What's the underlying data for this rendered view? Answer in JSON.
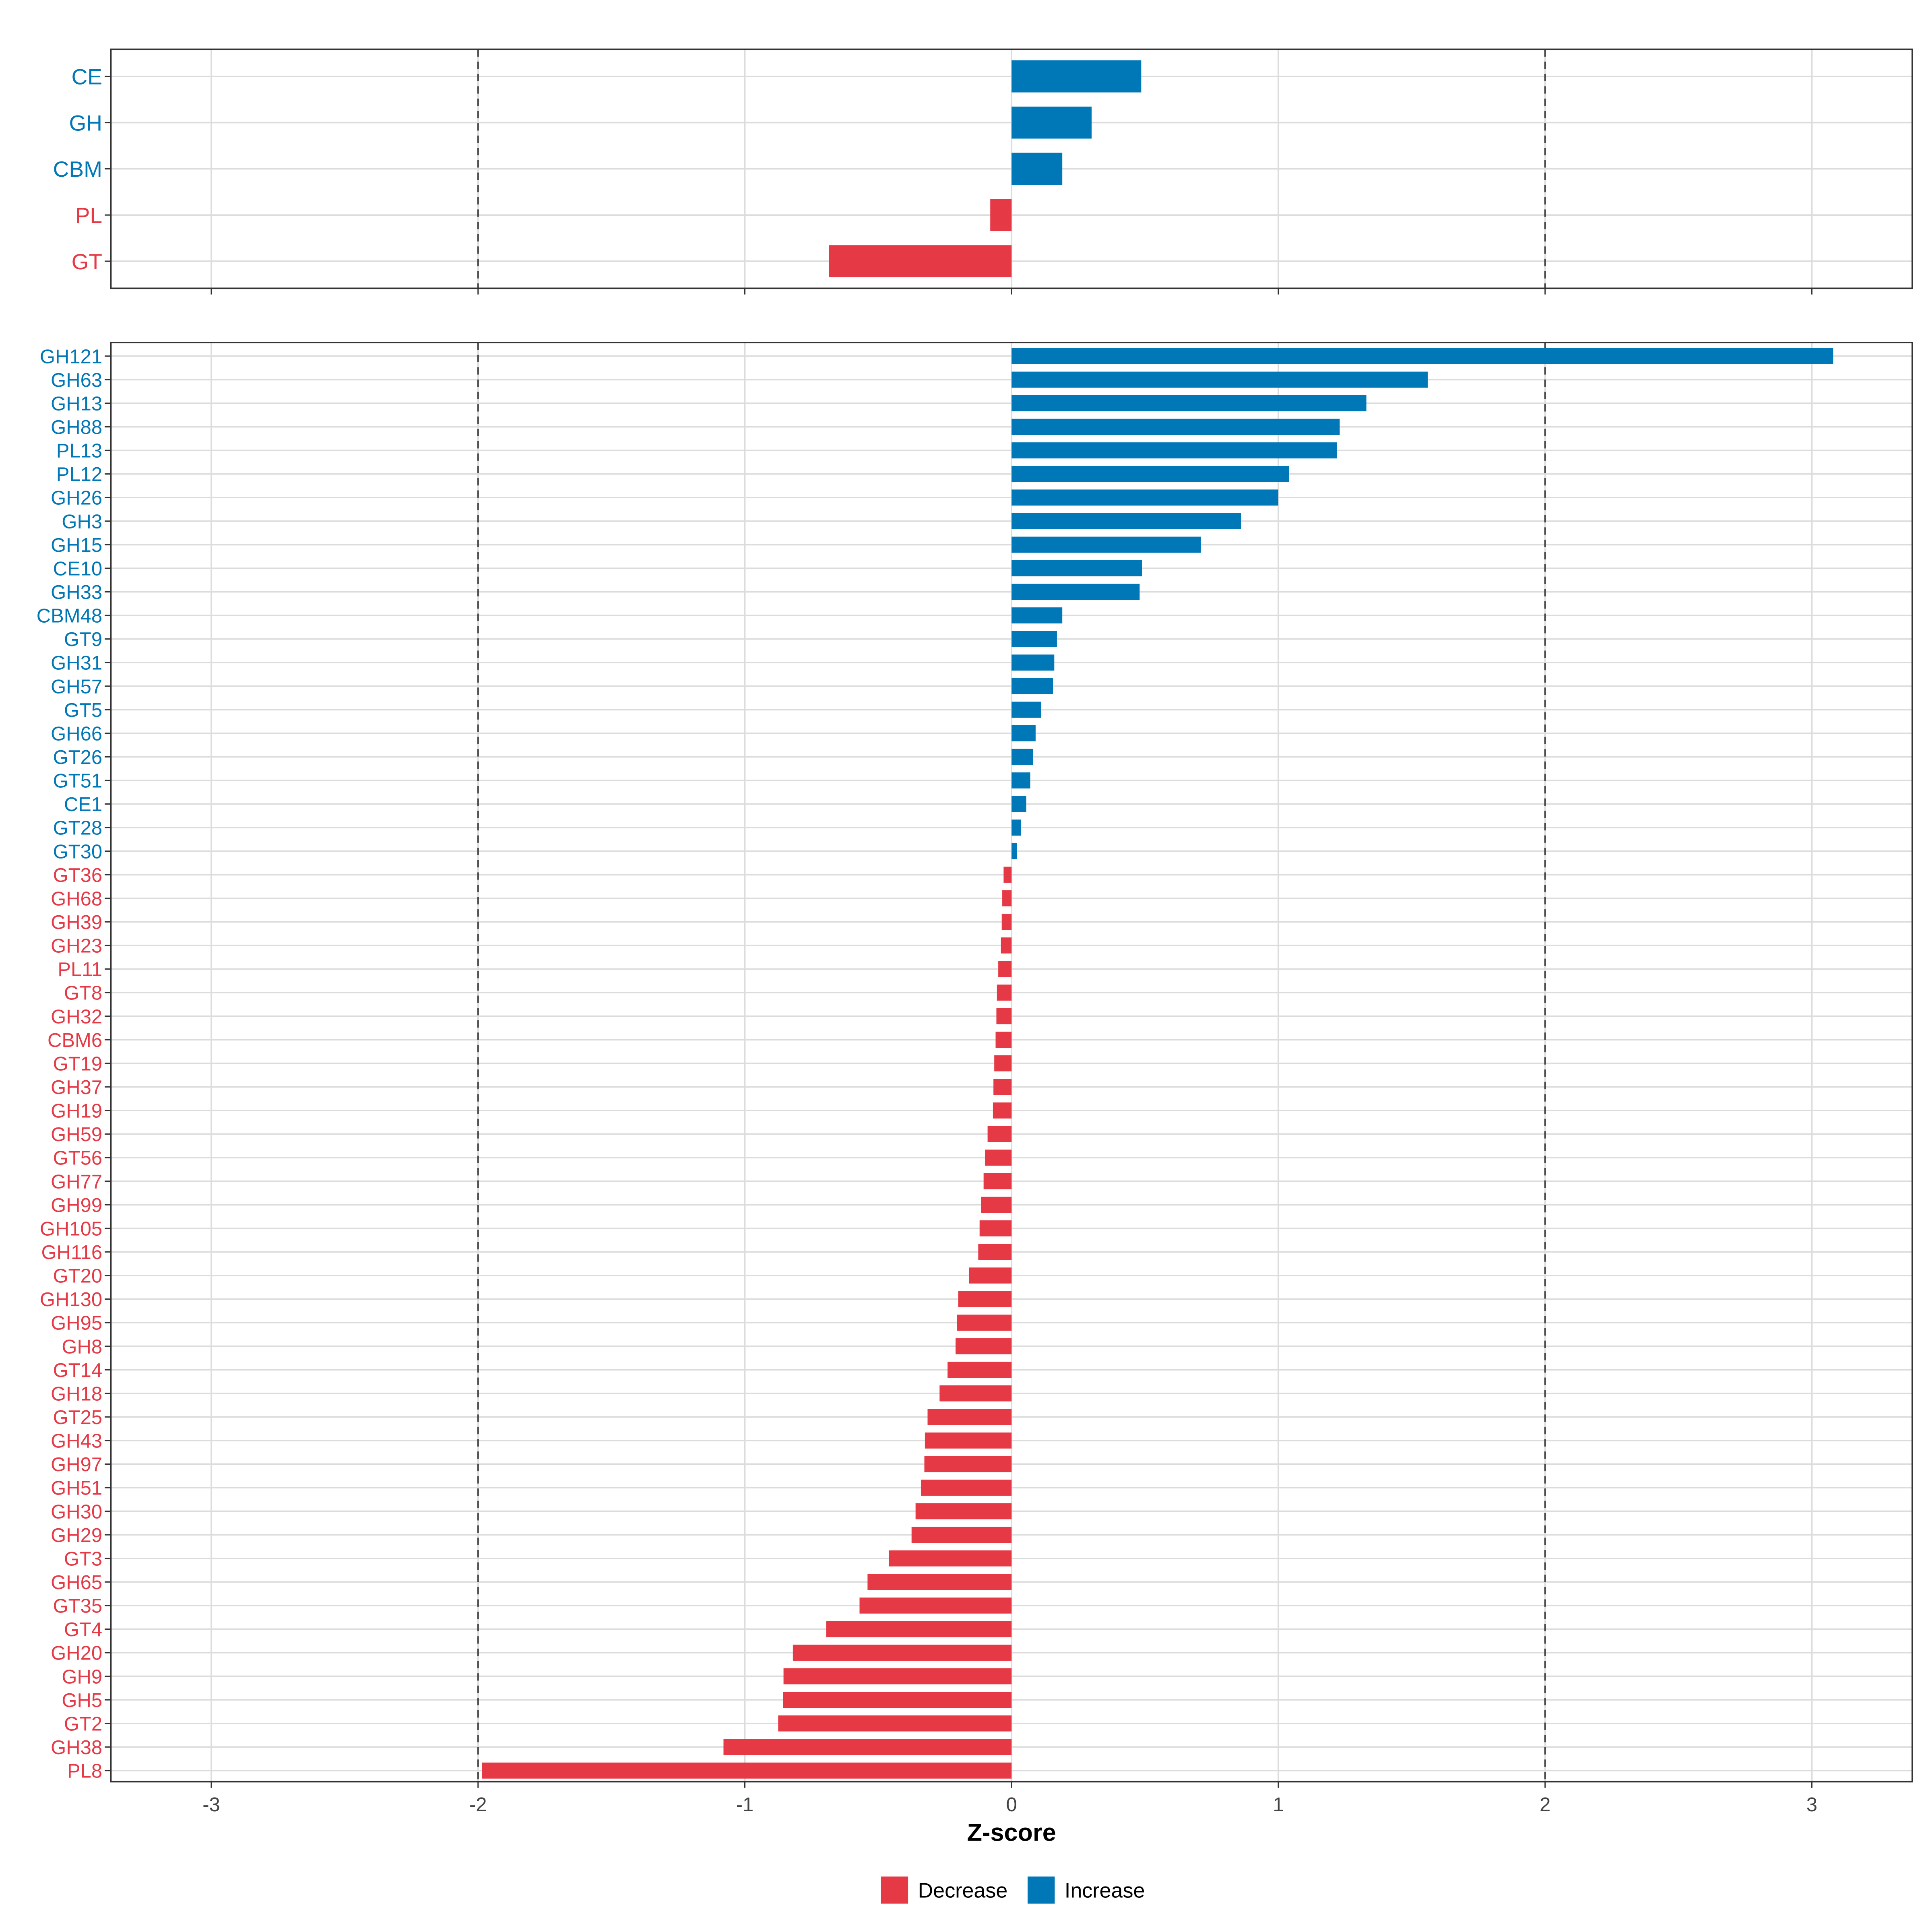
{
  "chart_data": [
    {
      "type": "bar",
      "orientation": "horizontal",
      "panel": "top",
      "categories": [
        "CE",
        "GH",
        "CBM",
        "PL",
        "GT"
      ],
      "values": [
        0.486,
        0.3,
        0.19,
        -0.08,
        -0.685
      ],
      "xlim": [
        -3.38,
        3.38
      ],
      "reference_lines": [
        -2,
        2
      ],
      "grid": true
    },
    {
      "type": "bar",
      "orientation": "horizontal",
      "panel": "bottom",
      "categories": [
        "GH121",
        "GH63",
        "GH13",
        "GH88",
        "PL13",
        "PL12",
        "GH26",
        "GH3",
        "GH15",
        "CE10",
        "GH33",
        "CBM48",
        "GT9",
        "GH31",
        "GH57",
        "GT5",
        "GH66",
        "GT26",
        "GT51",
        "CE1",
        "GT28",
        "GT30",
        "GT36",
        "GH68",
        "GH39",
        "GH23",
        "PL11",
        "GT8",
        "GH32",
        "CBM6",
        "GT19",
        "GH37",
        "GH19",
        "GH59",
        "GT56",
        "GH77",
        "GH99",
        "GH105",
        "GH116",
        "GT20",
        "GH130",
        "GH95",
        "GH8",
        "GT14",
        "GH18",
        "GT25",
        "GH43",
        "GH97",
        "GH51",
        "GH30",
        "GH29",
        "GT3",
        "GH65",
        "GT35",
        "GT4",
        "GH20",
        "GH9",
        "GH5",
        "GT2",
        "GH38",
        "PL8"
      ],
      "values": [
        3.08,
        1.56,
        1.33,
        1.23,
        1.22,
        1.04,
        1.0,
        0.86,
        0.71,
        0.49,
        0.48,
        0.19,
        0.17,
        0.16,
        0.155,
        0.11,
        0.09,
        0.08,
        0.07,
        0.055,
        0.035,
        0.02,
        -0.03,
        -0.035,
        -0.037,
        -0.04,
        -0.05,
        -0.055,
        -0.057,
        -0.06,
        -0.065,
        -0.068,
        -0.07,
        -0.09,
        -0.1,
        -0.105,
        -0.115,
        -0.12,
        -0.125,
        -0.16,
        -0.2,
        -0.205,
        -0.21,
        -0.24,
        -0.27,
        -0.315,
        -0.325,
        -0.327,
        -0.34,
        -0.36,
        -0.375,
        -0.46,
        -0.54,
        -0.57,
        -0.695,
        -0.82,
        -0.855,
        -0.857,
        -0.875,
        -1.08,
        -1.985
      ],
      "xlim": [
        -3.38,
        3.38
      ],
      "reference_lines": [
        -2,
        2
      ],
      "grid": true
    }
  ],
  "xlabel": "Z-score",
  "x_ticks": [
    "-3",
    "-2",
    "-1",
    "0",
    "1",
    "2",
    "3"
  ],
  "legend": {
    "placement": "bottom",
    "items": [
      {
        "label": "Decrease",
        "color": "#E63946"
      },
      {
        "label": "Increase",
        "color": "#0077B6"
      }
    ]
  }
}
